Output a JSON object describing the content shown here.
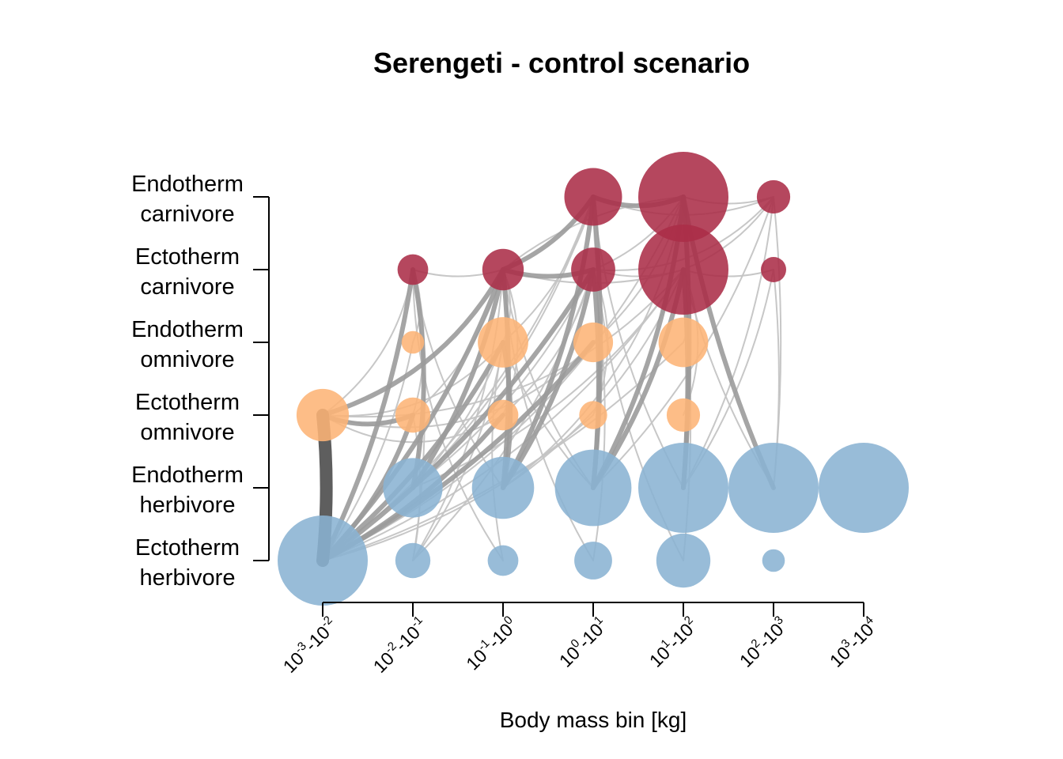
{
  "chart_data": {
    "type": "network",
    "title": "Serengeti - control scenario",
    "xlabel": "Body mass bin [kg]",
    "ylabel": "",
    "x_categories": [
      {
        "base": "10",
        "a": "-3",
        "b": "-2"
      },
      {
        "base": "10",
        "a": "-2",
        "b": "-1"
      },
      {
        "base": "10",
        "a": "-1",
        "b": "0"
      },
      {
        "base": "10",
        "a": "0",
        "b": "1"
      },
      {
        "base": "10",
        "a": "1",
        "b": "2"
      },
      {
        "base": "10",
        "a": "2",
        "b": "3"
      },
      {
        "base": "10",
        "a": "3",
        "b": "4"
      }
    ],
    "y_groups": [
      {
        "line1": "Ectotherm",
        "line2": "herbivore"
      },
      {
        "line1": "Endotherm",
        "line2": "herbivore"
      },
      {
        "line1": "Ectotherm",
        "line2": "omnivore"
      },
      {
        "line1": "Endotherm",
        "line2": "omnivore"
      },
      {
        "line1": "Ectotherm",
        "line2": "carnivore"
      },
      {
        "line1": "Endotherm",
        "line2": "carnivore"
      }
    ],
    "colors": {
      "herbivore": "#8ab3d3",
      "omnivore": "#fdb476",
      "carnivore": "#ab2d48",
      "strong_flow": "#5e5e5e",
      "medium_flow": "#9b9b9b",
      "weak_flow": "#c4c4c4"
    },
    "nodes": [
      {
        "bin": 0,
        "group": 0,
        "size": 1.0
      },
      {
        "bin": 1,
        "group": 0,
        "size": 0.39
      },
      {
        "bin": 2,
        "group": 0,
        "size": 0.34
      },
      {
        "bin": 3,
        "group": 0,
        "size": 0.42
      },
      {
        "bin": 4,
        "group": 0,
        "size": 0.6
      },
      {
        "bin": 5,
        "group": 0,
        "size": 0.25
      },
      {
        "bin": 1,
        "group": 1,
        "size": 0.66
      },
      {
        "bin": 2,
        "group": 1,
        "size": 0.69
      },
      {
        "bin": 3,
        "group": 1,
        "size": 0.85
      },
      {
        "bin": 4,
        "group": 1,
        "size": 1.0
      },
      {
        "bin": 5,
        "group": 1,
        "size": 1.0
      },
      {
        "bin": 6,
        "group": 1,
        "size": 1.0
      },
      {
        "bin": 0,
        "group": 2,
        "size": 0.58
      },
      {
        "bin": 1,
        "group": 2,
        "size": 0.39
      },
      {
        "bin": 2,
        "group": 2,
        "size": 0.34
      },
      {
        "bin": 3,
        "group": 2,
        "size": 0.31
      },
      {
        "bin": 4,
        "group": 2,
        "size": 0.37
      },
      {
        "bin": 1,
        "group": 3,
        "size": 0.25
      },
      {
        "bin": 2,
        "group": 3,
        "size": 0.56
      },
      {
        "bin": 3,
        "group": 3,
        "size": 0.44
      },
      {
        "bin": 4,
        "group": 3,
        "size": 0.55
      },
      {
        "bin": 1,
        "group": 4,
        "size": 0.34
      },
      {
        "bin": 2,
        "group": 4,
        "size": 0.46
      },
      {
        "bin": 3,
        "group": 4,
        "size": 0.49
      },
      {
        "bin": 4,
        "group": 4,
        "size": 1.0
      },
      {
        "bin": 5,
        "group": 4,
        "size": 0.28
      },
      {
        "bin": 3,
        "group": 5,
        "size": 0.64
      },
      {
        "bin": 4,
        "group": 5,
        "size": 1.0
      },
      {
        "bin": 5,
        "group": 5,
        "size": 0.37
      }
    ],
    "links": [
      {
        "from": [
          0,
          0
        ],
        "to": [
          0,
          2
        ],
        "weight": 3,
        "curve": 0.05
      },
      {
        "from": [
          0,
          0
        ],
        "to": [
          1,
          4
        ],
        "weight": 2,
        "curve": 0.08
      },
      {
        "from": [
          0,
          0
        ],
        "to": [
          2,
          4
        ],
        "weight": 2,
        "curve": 0.1
      },
      {
        "from": [
          0,
          0
        ],
        "to": [
          3,
          4
        ],
        "weight": 2,
        "curve": 0.1
      },
      {
        "from": [
          0,
          0
        ],
        "to": [
          2,
          3
        ],
        "weight": 2,
        "curve": 0.1
      },
      {
        "from": [
          0,
          0
        ],
        "to": [
          1,
          2
        ],
        "weight": 2,
        "curve": 0.12
      },
      {
        "from": [
          0,
          0
        ],
        "to": [
          2,
          2
        ],
        "weight": 2,
        "curve": 0.1
      },
      {
        "from": [
          0,
          0
        ],
        "to": [
          3,
          3
        ],
        "weight": 2,
        "curve": 0.1
      },
      {
        "from": [
          0,
          0
        ],
        "to": [
          3,
          2
        ],
        "weight": 1,
        "curve": 0.12
      },
      {
        "from": [
          0,
          0
        ],
        "to": [
          4,
          3
        ],
        "weight": 1,
        "curve": 0.12
      },
      {
        "from": [
          0,
          0
        ],
        "to": [
          4,
          4
        ],
        "weight": 1,
        "curve": 0.15
      },
      {
        "from": [
          0,
          0
        ],
        "to": [
          1,
          3
        ],
        "weight": 1,
        "curve": 0.1
      },
      {
        "from": [
          0,
          0
        ],
        "to": [
          4,
          5
        ],
        "weight": 1,
        "curve": 0.18
      },
      {
        "from": [
          0,
          0
        ],
        "to": [
          3,
          5
        ],
        "weight": 1,
        "curve": 0.15
      },
      {
        "from": [
          0,
          2
        ],
        "to": [
          1,
          2
        ],
        "weight": 2,
        "curve": 0.2
      },
      {
        "from": [
          0,
          2
        ],
        "to": [
          2,
          4
        ],
        "weight": 2,
        "curve": 0.2
      },
      {
        "from": [
          0,
          2
        ],
        "to": [
          1,
          4
        ],
        "weight": 1,
        "curve": 0.2
      },
      {
        "from": [
          0,
          2
        ],
        "to": [
          2,
          3
        ],
        "weight": 1,
        "curve": 0.25
      },
      {
        "from": [
          0,
          2
        ],
        "to": [
          3,
          3
        ],
        "weight": 1,
        "curve": 0.3
      },
      {
        "from": [
          0,
          2
        ],
        "to": [
          2,
          2
        ],
        "weight": 1,
        "curve": 0.3
      },
      {
        "from": [
          0,
          2
        ],
        "to": [
          4,
          4
        ],
        "weight": 1,
        "curve": 0.25
      },
      {
        "from": [
          1,
          0
        ],
        "to": [
          1,
          4
        ],
        "weight": 1,
        "curve": 0.08
      },
      {
        "from": [
          1,
          0
        ],
        "to": [
          2,
          3
        ],
        "weight": 1,
        "curve": 0.12
      },
      {
        "from": [
          1,
          0
        ],
        "to": [
          2,
          4
        ],
        "weight": 1,
        "curve": 0.12
      },
      {
        "from": [
          1,
          0
        ],
        "to": [
          3,
          4
        ],
        "weight": 1,
        "curve": 0.12
      },
      {
        "from": [
          1,
          0
        ],
        "to": [
          1,
          2
        ],
        "weight": 1,
        "curve": 0.1
      },
      {
        "from": [
          1,
          1
        ],
        "to": [
          1,
          4
        ],
        "weight": 2,
        "curve": 0.1
      },
      {
        "from": [
          1,
          1
        ],
        "to": [
          2,
          4
        ],
        "weight": 2,
        "curve": 0.1
      },
      {
        "from": [
          1,
          1
        ],
        "to": [
          2,
          3
        ],
        "weight": 1,
        "curve": 0.1
      },
      {
        "from": [
          1,
          1
        ],
        "to": [
          3,
          4
        ],
        "weight": 1,
        "curve": 0.12
      },
      {
        "from": [
          1,
          1
        ],
        "to": [
          3,
          5
        ],
        "weight": 1,
        "curve": 0.12
      },
      {
        "from": [
          1,
          1
        ],
        "to": [
          4,
          4
        ],
        "weight": 1,
        "curve": 0.15
      },
      {
        "from": [
          2,
          0
        ],
        "to": [
          1,
          4
        ],
        "weight": 1,
        "curve": -0.15
      },
      {
        "from": [
          2,
          0
        ],
        "to": [
          2,
          3
        ],
        "weight": 1,
        "curve": -0.1
      },
      {
        "from": [
          2,
          1
        ],
        "to": [
          2,
          3
        ],
        "weight": 2,
        "curve": 0.1
      },
      {
        "from": [
          2,
          1
        ],
        "to": [
          2,
          4
        ],
        "weight": 2,
        "curve": 0.05
      },
      {
        "from": [
          2,
          1
        ],
        "to": [
          3,
          4
        ],
        "weight": 2,
        "curve": 0.1
      },
      {
        "from": [
          2,
          1
        ],
        "to": [
          3,
          5
        ],
        "weight": 2,
        "curve": 0.1
      },
      {
        "from": [
          2,
          1
        ],
        "to": [
          1,
          4
        ],
        "weight": 1,
        "curve": -0.12
      },
      {
        "from": [
          2,
          1
        ],
        "to": [
          4,
          4
        ],
        "weight": 1,
        "curve": 0.15
      },
      {
        "from": [
          2,
          1
        ],
        "to": [
          4,
          5
        ],
        "weight": 1,
        "curve": 0.2
      },
      {
        "from": [
          3,
          0
        ],
        "to": [
          2,
          4
        ],
        "weight": 1,
        "curve": -0.12
      },
      {
        "from": [
          3,
          0
        ],
        "to": [
          3,
          4
        ],
        "weight": 1,
        "curve": 0.08
      },
      {
        "from": [
          3,
          1
        ],
        "to": [
          3,
          5
        ],
        "weight": 2,
        "curve": 0.05
      },
      {
        "from": [
          3,
          1
        ],
        "to": [
          3,
          4
        ],
        "weight": 2,
        "curve": 0.05
      },
      {
        "from": [
          3,
          1
        ],
        "to": [
          4,
          5
        ],
        "weight": 2,
        "curve": 0.1
      },
      {
        "from": [
          3,
          1
        ],
        "to": [
          4,
          4
        ],
        "weight": 2,
        "curve": 0.1
      },
      {
        "from": [
          3,
          1
        ],
        "to": [
          2,
          4
        ],
        "weight": 1,
        "curve": -0.12
      },
      {
        "from": [
          3,
          1
        ],
        "to": [
          2,
          3
        ],
        "weight": 1,
        "curve": -0.1
      },
      {
        "from": [
          3,
          1
        ],
        "to": [
          5,
          5
        ],
        "weight": 1,
        "curve": 0.12
      },
      {
        "from": [
          4,
          0
        ],
        "to": [
          4,
          4
        ],
        "weight": 1,
        "curve": 0.05
      },
      {
        "from": [
          4,
          0
        ],
        "to": [
          3,
          5
        ],
        "weight": 1,
        "curve": -0.12
      },
      {
        "from": [
          4,
          1
        ],
        "to": [
          4,
          5
        ],
        "weight": 2,
        "curve": 0.04
      },
      {
        "from": [
          4,
          1
        ],
        "to": [
          4,
          4
        ],
        "weight": 2,
        "curve": 0.04
      },
      {
        "from": [
          4,
          1
        ],
        "to": [
          3,
          5
        ],
        "weight": 1,
        "curve": -0.1
      },
      {
        "from": [
          4,
          1
        ],
        "to": [
          5,
          5
        ],
        "weight": 1,
        "curve": 0.1
      },
      {
        "from": [
          4,
          1
        ],
        "to": [
          5,
          4
        ],
        "weight": 1,
        "curve": 0.1
      },
      {
        "from": [
          5,
          1
        ],
        "to": [
          4,
          5
        ],
        "weight": 2,
        "curve": -0.06
      },
      {
        "from": [
          5,
          1
        ],
        "to": [
          5,
          5
        ],
        "weight": 1,
        "curve": 0.05
      },
      {
        "from": [
          5,
          1
        ],
        "to": [
          5,
          4
        ],
        "weight": 1,
        "curve": 0.05
      },
      {
        "from": [
          5,
          1
        ],
        "to": [
          4,
          4
        ],
        "weight": 1,
        "curve": -0.08
      },
      {
        "from": [
          1,
          2
        ],
        "to": [
          1,
          4
        ],
        "weight": 1,
        "curve": 0.15
      },
      {
        "from": [
          1,
          2
        ],
        "to": [
          2,
          4
        ],
        "weight": 1,
        "curve": 0.15
      },
      {
        "from": [
          2,
          2
        ],
        "to": [
          2,
          4
        ],
        "weight": 1,
        "curve": 0.2
      },
      {
        "from": [
          2,
          2
        ],
        "to": [
          3,
          4
        ],
        "weight": 1,
        "curve": 0.15
      },
      {
        "from": [
          3,
          2
        ],
        "to": [
          3,
          4
        ],
        "weight": 1,
        "curve": 0.2
      },
      {
        "from": [
          4,
          2
        ],
        "to": [
          4,
          4
        ],
        "weight": 1,
        "curve": 0.2
      },
      {
        "from": [
          2,
          3
        ],
        "to": [
          3,
          5
        ],
        "weight": 1,
        "curve": 0.15
      },
      {
        "from": [
          2,
          3
        ],
        "to": [
          2,
          4
        ],
        "weight": 1,
        "curve": 0.2
      },
      {
        "from": [
          3,
          3
        ],
        "to": [
          4,
          5
        ],
        "weight": 1,
        "curve": 0.15
      },
      {
        "from": [
          1,
          3
        ],
        "to": [
          1,
          4
        ],
        "weight": 1,
        "curve": 0.2
      },
      {
        "from": [
          4,
          3
        ],
        "to": [
          4,
          4
        ],
        "weight": 1,
        "curve": 0.2
      },
      {
        "from": [
          1,
          4
        ],
        "to": [
          2,
          4
        ],
        "weight": 1,
        "curve": 0.15
      },
      {
        "from": [
          2,
          4
        ],
        "to": [
          3,
          4
        ],
        "weight": 2,
        "curve": 0.15
      },
      {
        "from": [
          2,
          4
        ],
        "to": [
          3,
          5
        ],
        "weight": 2,
        "curve": 0.15
      },
      {
        "from": [
          2,
          4
        ],
        "to": [
          4,
          4
        ],
        "weight": 1,
        "curve": 0.15
      },
      {
        "from": [
          2,
          4
        ],
        "to": [
          4,
          5
        ],
        "weight": 1,
        "curve": -0.15
      },
      {
        "from": [
          3,
          4
        ],
        "to": [
          4,
          4
        ],
        "weight": 1,
        "curve": 0.15
      },
      {
        "from": [
          3,
          4
        ],
        "to": [
          4,
          5
        ],
        "weight": 1,
        "curve": 0.15
      },
      {
        "from": [
          3,
          5
        ],
        "to": [
          4,
          5
        ],
        "weight": 2,
        "curve": 0.2
      },
      {
        "from": [
          3,
          5
        ],
        "to": [
          5,
          5
        ],
        "weight": 1,
        "curve": 0.2
      },
      {
        "from": [
          4,
          5
        ],
        "to": [
          5,
          5
        ],
        "weight": 1,
        "curve": 0.15
      },
      {
        "from": [
          4,
          4
        ],
        "to": [
          5,
          4
        ],
        "weight": 1,
        "curve": 0.15
      },
      {
        "from": [
          4,
          4
        ],
        "to": [
          5,
          5
        ],
        "weight": 1,
        "curve": 0.15
      },
      {
        "from": [
          3,
          4
        ],
        "to": [
          5,
          5
        ],
        "weight": 1,
        "curve": 0.25
      }
    ]
  }
}
